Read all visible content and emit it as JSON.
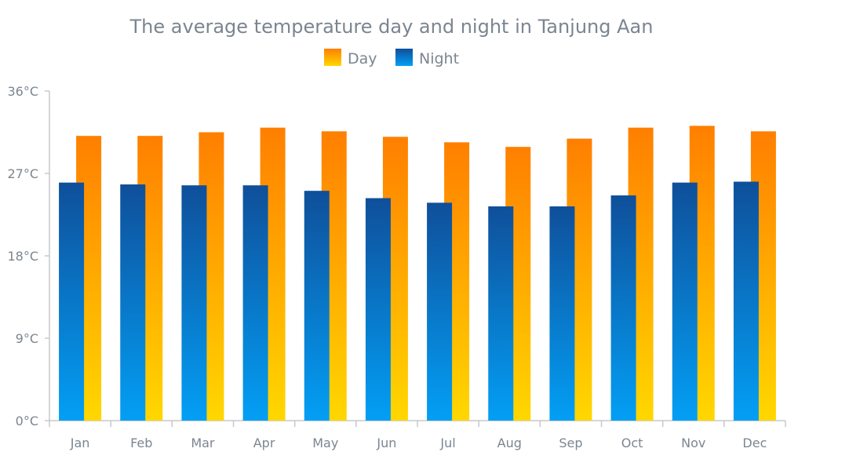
{
  "chart_data": {
    "type": "bar",
    "title": "The average temperature day and night in Tanjung Aan",
    "categories": [
      "Jan",
      "Feb",
      "Mar",
      "Apr",
      "May",
      "Jun",
      "Jul",
      "Aug",
      "Sep",
      "Oct",
      "Nov",
      "Dec"
    ],
    "series": [
      {
        "name": "Day",
        "values": [
          31.1,
          31.1,
          31.5,
          32.0,
          31.6,
          31.0,
          30.4,
          29.9,
          30.8,
          32.0,
          32.2,
          31.6
        ]
      },
      {
        "name": "Night",
        "values": [
          26.0,
          25.8,
          25.7,
          25.7,
          25.1,
          24.3,
          23.8,
          23.4,
          23.4,
          24.6,
          26.0,
          26.1
        ]
      }
    ],
    "y_ticks": [
      "0°C",
      "9°C",
      "18°C",
      "27°C",
      "36°C"
    ],
    "ylim": [
      0,
      36
    ],
    "legend_position": "top-center",
    "colors": {
      "day_top": "#ff7f00",
      "day_bottom": "#ffd700",
      "night_top": "#0f4f9a",
      "night_bottom": "#039ff5"
    }
  }
}
